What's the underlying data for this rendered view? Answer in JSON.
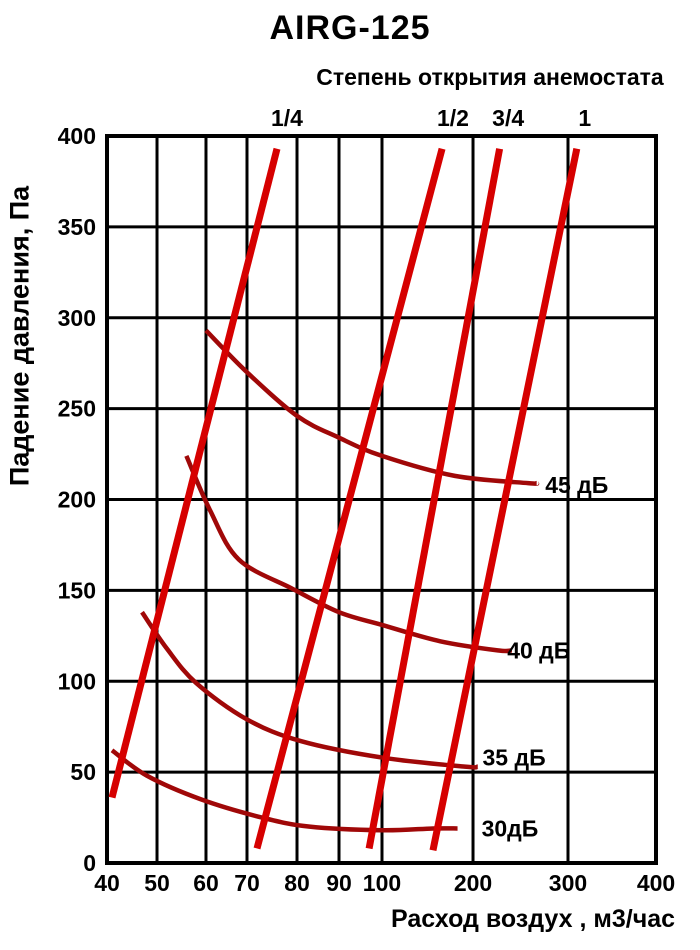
{
  "page": {
    "background": "#ffffff"
  },
  "chart_data": {
    "type": "line",
    "title": "AIRG-125",
    "top_axis": {
      "title": "Степень открытия анемостата",
      "ticks": [
        {
          "label": "1/4",
          "q": 78
        },
        {
          "label": "1/2",
          "q": 178
        },
        {
          "label": "3/4",
          "q": 237
        },
        {
          "label": "1",
          "q": 319
        }
      ]
    },
    "x_axis": {
      "title": "Расход воздух , м3/час",
      "min": 40,
      "max": 400,
      "scale": "pseudo-log",
      "grid": true,
      "ticks": [
        {
          "label": "40",
          "q": 40,
          "pos": 0.0
        },
        {
          "label": "50",
          "q": 50,
          "pos": 0.0911
        },
        {
          "label": "60",
          "q": 60,
          "pos": 0.1803
        },
        {
          "label": "70",
          "q": 70,
          "pos": 0.255
        },
        {
          "label": "80",
          "q": 80,
          "pos": 0.3461
        },
        {
          "label": "90",
          "q": 90,
          "pos": 0.4226
        },
        {
          "label": "100",
          "q": 100,
          "pos": 0.5009
        },
        {
          "label": "200",
          "q": 200,
          "pos": 0.6667
        },
        {
          "label": "300",
          "q": 300,
          "pos": 0.8397
        },
        {
          "label": "400",
          "q": 400,
          "pos": 1.0
        }
      ]
    },
    "y_axis": {
      "title": "Падение давления, Па",
      "min": 0,
      "max": 400,
      "step": 50,
      "grid": true,
      "ticks": [
        {
          "label": "0",
          "p": 0
        },
        {
          "label": "50",
          "p": 50
        },
        {
          "label": "100",
          "p": 100
        },
        {
          "label": "150",
          "p": 150
        },
        {
          "label": "200",
          "p": 200
        },
        {
          "label": "250",
          "p": 250
        },
        {
          "label": "300",
          "p": 300
        },
        {
          "label": "350",
          "p": 350
        },
        {
          "label": "400",
          "p": 400
        }
      ]
    },
    "colors": {
      "opening_line": "#d60000",
      "noise_curve": "#a00808",
      "grid": "#000000",
      "text": "#000000"
    },
    "opening_lines": [
      {
        "id": "1-4",
        "label": "1/4",
        "points": [
          [
            41,
            36
          ],
          [
            76,
            393
          ]
        ]
      },
      {
        "id": "1-2",
        "label": "1/2",
        "points": [
          [
            72,
            8
          ],
          [
            166,
            393
          ]
        ]
      },
      {
        "id": "3-4",
        "label": "3/4",
        "points": [
          [
            97,
            8
          ],
          [
            228,
            393
          ]
        ]
      },
      {
        "id": "1",
        "label": "1",
        "points": [
          [
            156,
            7
          ],
          [
            310,
            393
          ]
        ]
      }
    ],
    "noise_curves": [
      {
        "id": "45db",
        "label": "45 дБ",
        "label_anchor": {
          "q": 276,
          "p": 208
        },
        "points": [
          [
            60,
            293
          ],
          [
            70,
            270
          ],
          [
            80,
            246
          ],
          [
            90,
            234
          ],
          [
            100,
            224
          ],
          [
            180,
            213
          ],
          [
            258,
            209
          ],
          [
            267,
            209
          ]
        ]
      },
      {
        "id": "40db",
        "label": "40 дБ",
        "label_anchor": {
          "q": 236,
          "p": 117
        },
        "points": [
          [
            56,
            224
          ],
          [
            61,
            194
          ],
          [
            68,
            167
          ],
          [
            79,
            151
          ],
          [
            90,
            138
          ],
          [
            100,
            131
          ],
          [
            164,
            122
          ],
          [
            226,
            117
          ],
          [
            241,
            117
          ]
        ]
      },
      {
        "id": "35db",
        "label": "35 дБ",
        "label_anchor": {
          "q": 210,
          "p": 58
        },
        "points": [
          [
            47,
            138
          ],
          [
            52,
            118
          ],
          [
            58,
            99
          ],
          [
            70,
            79
          ],
          [
            81,
            67
          ],
          [
            100,
            58
          ],
          [
            191,
            53
          ],
          [
            205,
            53
          ]
        ]
      },
      {
        "id": "30db",
        "label": "30дБ",
        "label_anchor": {
          "q": 209,
          "p": 19
        },
        "points": [
          [
            41,
            62
          ],
          [
            48,
            48
          ],
          [
            59,
            35
          ],
          [
            73,
            25
          ],
          [
            83,
            20
          ],
          [
            100,
            18
          ],
          [
            156,
            19
          ],
          [
            183,
            19
          ]
        ]
      }
    ]
  }
}
